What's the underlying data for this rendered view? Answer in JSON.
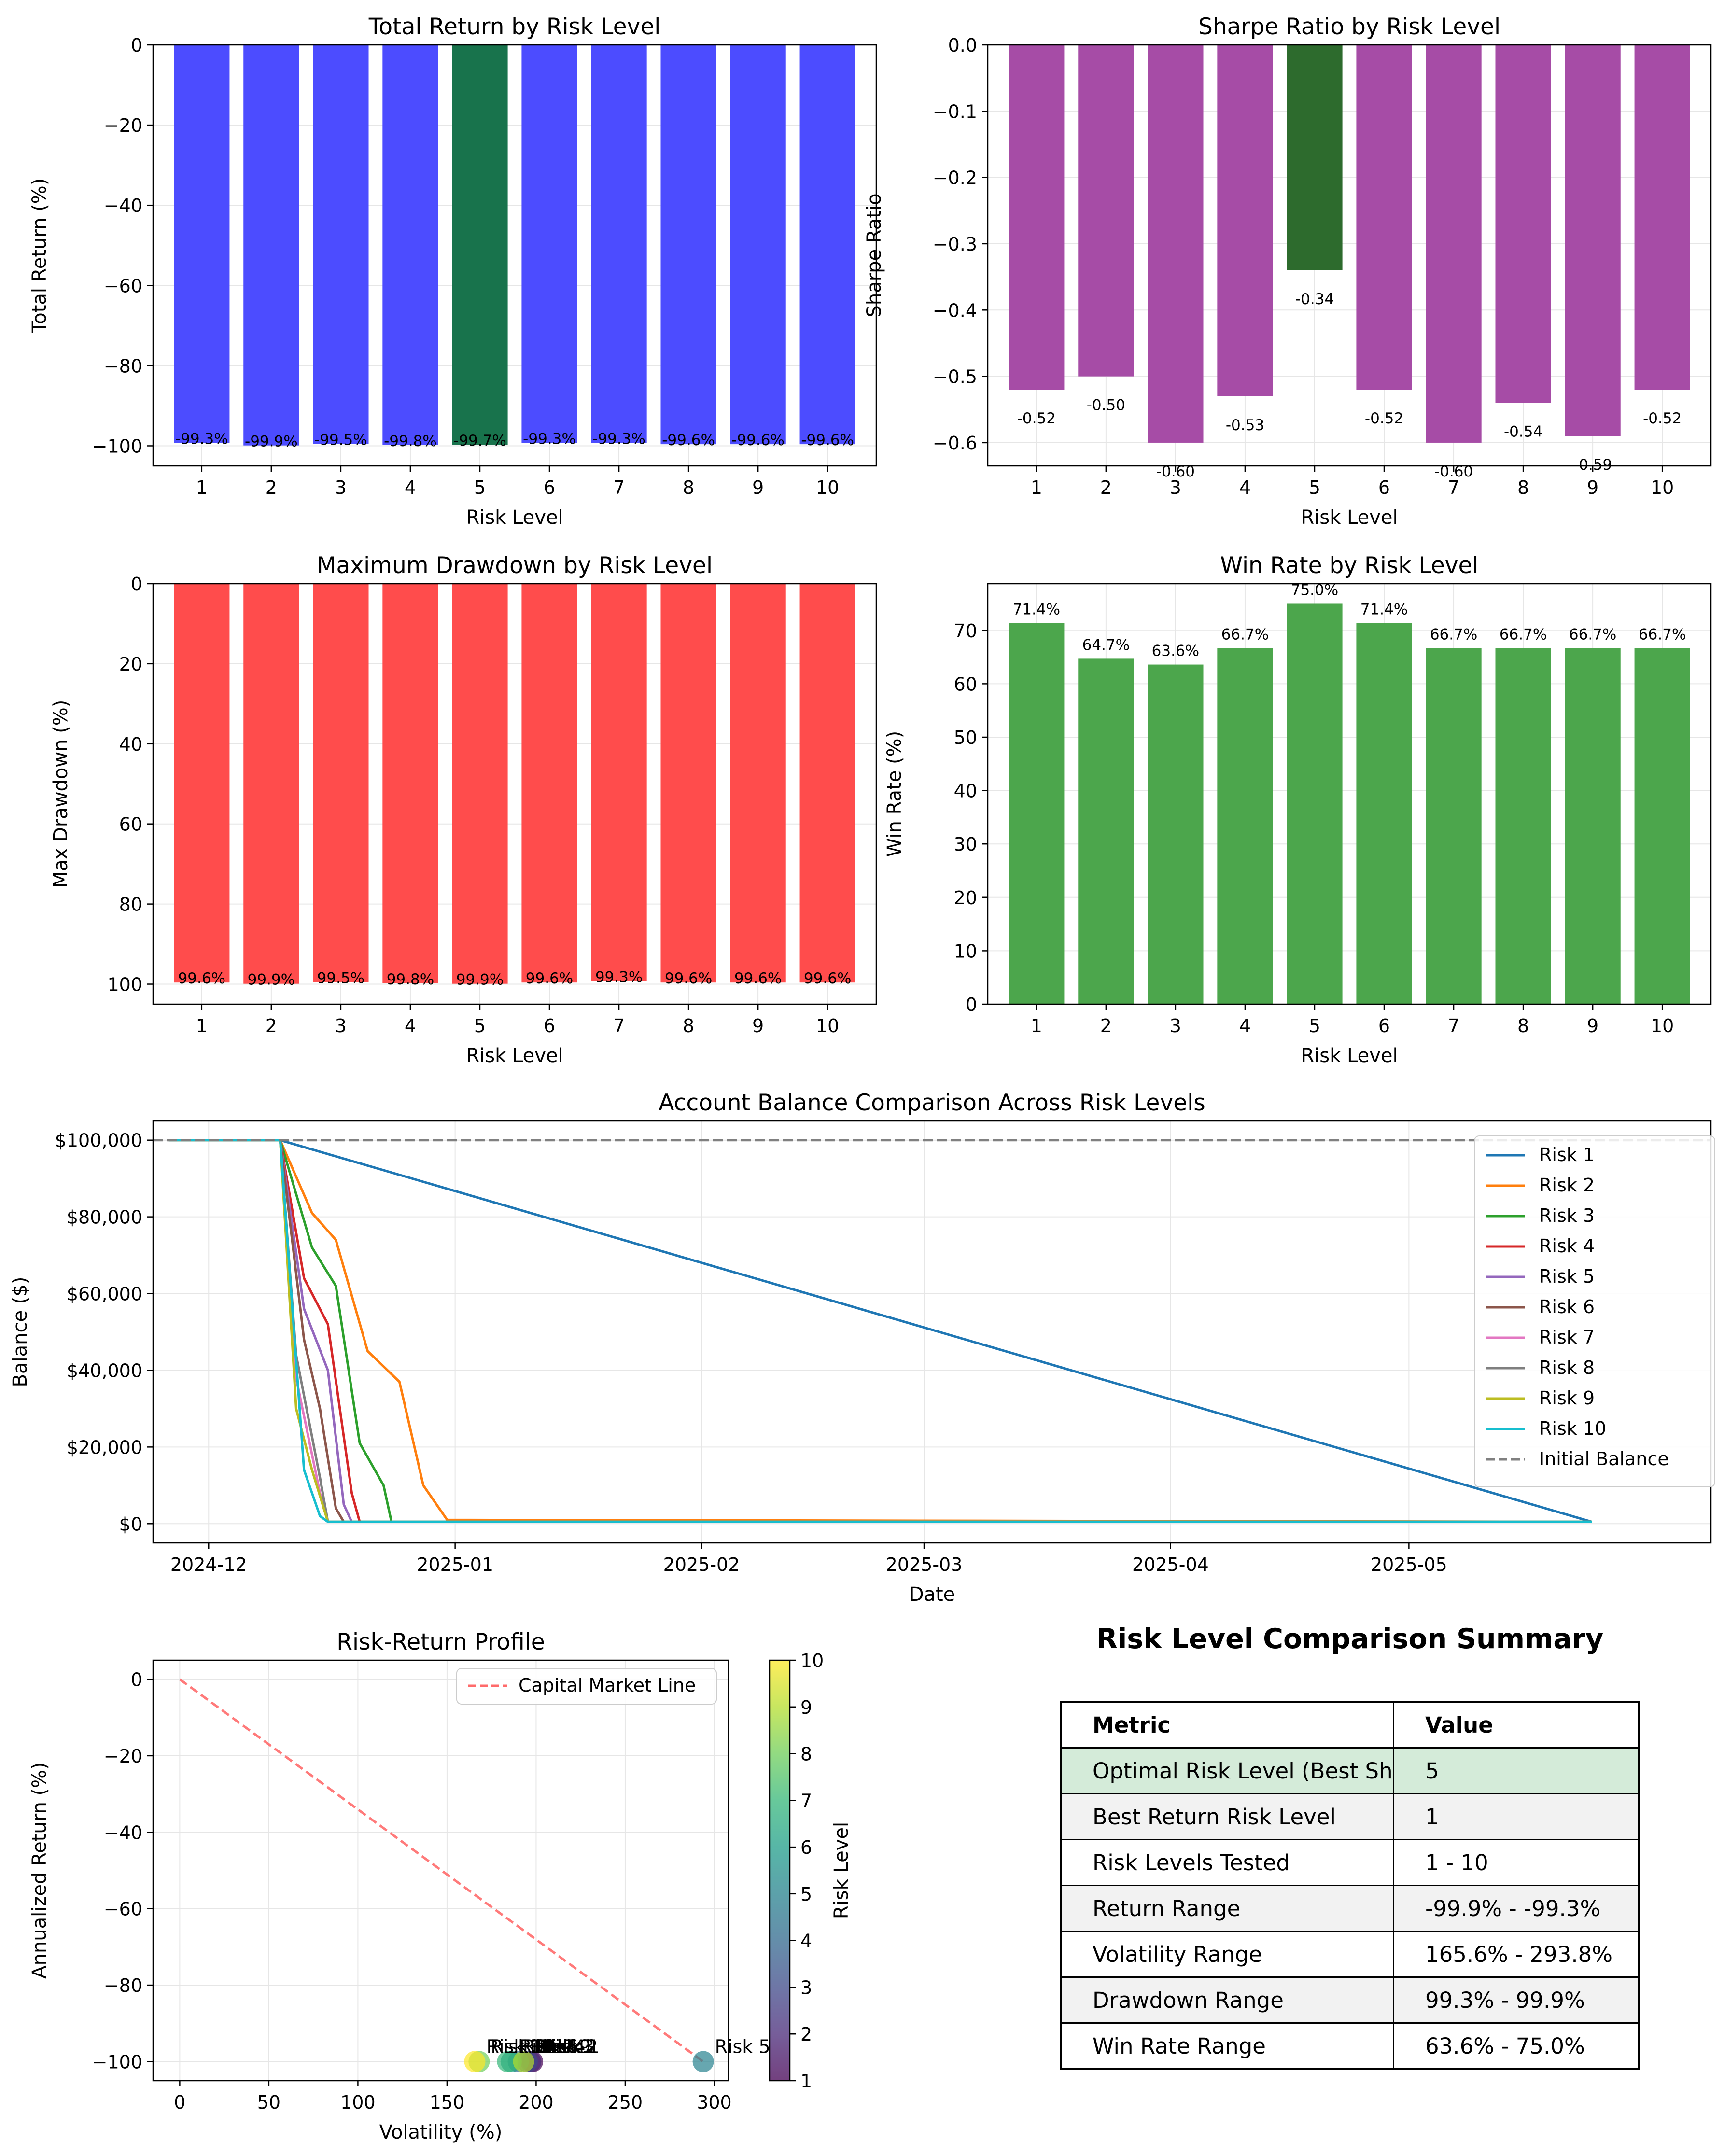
{
  "chart_data": [
    {
      "id": "total_return",
      "type": "bar",
      "title": "Total Return by Risk Level",
      "xlabel": "Risk Level",
      "ylabel": "Total Return (%)",
      "categories": [
        "1",
        "2",
        "3",
        "4",
        "5",
        "6",
        "7",
        "8",
        "9",
        "10"
      ],
      "values": [
        -99.3,
        -99.9,
        -99.5,
        -99.8,
        -99.7,
        -99.3,
        -99.3,
        -99.6,
        -99.6,
        -99.6
      ],
      "labels": [
        "-99.3%",
        "-99.9%",
        "-99.5%",
        "-99.8%",
        "-99.7%",
        "-99.3%",
        "-99.3%",
        "-99.6%",
        "-99.6%",
        "-99.6%"
      ],
      "ylim": [
        -105,
        0
      ],
      "yticks": [
        0,
        -20,
        -40,
        -60,
        -80,
        -100
      ],
      "ytick_labels": [
        "0",
        "−20",
        "−40",
        "−60",
        "−80",
        "−100"
      ],
      "highlight_index": 4,
      "colors": {
        "bar": "#4c4cff",
        "highlight": "#18734c"
      },
      "grid": true
    },
    {
      "id": "sharpe",
      "type": "bar",
      "title": "Sharpe Ratio by Risk Level",
      "xlabel": "Risk Level",
      "ylabel": "Sharpe Ratio",
      "categories": [
        "1",
        "2",
        "3",
        "4",
        "5",
        "6",
        "7",
        "8",
        "9",
        "10"
      ],
      "values": [
        -0.52,
        -0.5,
        -0.6,
        -0.53,
        -0.34,
        -0.52,
        -0.6,
        -0.54,
        -0.59,
        -0.52
      ],
      "labels": [
        "-0.52",
        "-0.50",
        "-0.60",
        "-0.53",
        "-0.34",
        "-0.52",
        "-0.60",
        "-0.54",
        "-0.59",
        "-0.52"
      ],
      "ylim": [
        -0.635,
        0
      ],
      "yticks": [
        0,
        -0.1,
        -0.2,
        -0.3,
        -0.4,
        -0.5,
        -0.6
      ],
      "ytick_labels": [
        "0.0",
        "−0.1",
        "−0.2",
        "−0.3",
        "−0.4",
        "−0.5",
        "−0.6"
      ],
      "highlight_index": 4,
      "colors": {
        "bar": "#a64ca6",
        "highlight": "#2d6b2d"
      },
      "grid": true
    },
    {
      "id": "drawdown",
      "type": "bar",
      "title": "Maximum Drawdown by Risk Level",
      "xlabel": "Risk Level",
      "ylabel": "Max Drawdown (%)",
      "categories": [
        "1",
        "2",
        "3",
        "4",
        "5",
        "6",
        "7",
        "8",
        "9",
        "10"
      ],
      "values": [
        99.6,
        99.9,
        99.5,
        99.8,
        99.9,
        99.6,
        99.3,
        99.6,
        99.6,
        99.6
      ],
      "labels": [
        "99.6%",
        "99.9%",
        "99.5%",
        "99.8%",
        "99.9%",
        "99.6%",
        "99.3%",
        "99.6%",
        "99.6%",
        "99.6%"
      ],
      "ylim": [
        105,
        0
      ],
      "inverted": true,
      "yticks": [
        0,
        20,
        40,
        60,
        80,
        100
      ],
      "ytick_labels": [
        "0",
        "20",
        "40",
        "60",
        "80",
        "100"
      ],
      "colors": {
        "bar": "#ff4c4c"
      },
      "grid": true
    },
    {
      "id": "winrate",
      "type": "bar",
      "title": "Win Rate by Risk Level",
      "xlabel": "Risk Level",
      "ylabel": "Win Rate (%)",
      "categories": [
        "1",
        "2",
        "3",
        "4",
        "5",
        "6",
        "7",
        "8",
        "9",
        "10"
      ],
      "values": [
        71.4,
        64.7,
        63.6,
        66.7,
        75.0,
        71.4,
        66.7,
        66.7,
        66.7,
        66.7
      ],
      "labels": [
        "71.4%",
        "64.7%",
        "63.6%",
        "66.7%",
        "75.0%",
        "71.4%",
        "66.7%",
        "66.7%",
        "66.7%",
        "66.7%"
      ],
      "ylim": [
        0,
        78.75
      ],
      "yticks": [
        0,
        10,
        20,
        30,
        40,
        50,
        60,
        70
      ],
      "ytick_labels": [
        "0",
        "10",
        "20",
        "30",
        "40",
        "50",
        "60",
        "70"
      ],
      "colors": {
        "bar": "#4ca64c"
      },
      "grid": true
    },
    {
      "id": "balance",
      "type": "line",
      "title": "Account Balance Comparison Across Risk Levels",
      "xlabel": "Date",
      "ylabel": "Balance ($)",
      "xlim": [
        "2024-11-24",
        "2025-06-08"
      ],
      "ylim": [
        -5000,
        105000
      ],
      "xticks": [
        "2024-12-01",
        "2025-01-01",
        "2025-02-01",
        "2025-03-01",
        "2025-04-01",
        "2025-05-01"
      ],
      "xtick_labels": [
        "2024-12",
        "2025-01",
        "2025-02",
        "2025-03",
        "2025-04",
        "2025-05"
      ],
      "yticks": [
        0,
        20000,
        40000,
        60000,
        80000,
        100000
      ],
      "ytick_labels": [
        "$0",
        "$20,000",
        "$40,000",
        "$60,000",
        "$80,000",
        "$100,000"
      ],
      "legend": "top-right",
      "grid": true,
      "series": [
        {
          "name": "Risk 1",
          "color": "#1f77b4",
          "x": [
            "2024-11-26",
            "2024-12-10",
            "2025-05-24"
          ],
          "y": [
            100000,
            100000,
            500
          ]
        },
        {
          "name": "Risk 2",
          "color": "#ff7f0e",
          "x": [
            "2024-11-26",
            "2024-12-10",
            "2024-12-14",
            "2024-12-17",
            "2024-12-21",
            "2024-12-25",
            "2024-12-28",
            "2024-12-31",
            "2025-05-24"
          ],
          "y": [
            100000,
            100000,
            81000,
            74000,
            45000,
            37000,
            10000,
            1000,
            500
          ]
        },
        {
          "name": "Risk 3",
          "color": "#2ca02c",
          "x": [
            "2024-11-26",
            "2024-12-10",
            "2024-12-14",
            "2024-12-17",
            "2024-12-20",
            "2024-12-23",
            "2024-12-24",
            "2025-05-24"
          ],
          "y": [
            100000,
            100000,
            72000,
            62000,
            21000,
            10000,
            500,
            500
          ]
        },
        {
          "name": "Risk 4",
          "color": "#d62728",
          "x": [
            "2024-11-26",
            "2024-12-10",
            "2024-12-13",
            "2024-12-16",
            "2024-12-19",
            "2024-12-20",
            "2025-05-24"
          ],
          "y": [
            100000,
            100000,
            64000,
            52000,
            8000,
            500,
            500
          ]
        },
        {
          "name": "Risk 5",
          "color": "#9467bd",
          "x": [
            "2024-11-26",
            "2024-12-10",
            "2024-12-13",
            "2024-12-16",
            "2024-12-18",
            "2024-12-19",
            "2025-05-24"
          ],
          "y": [
            100000,
            100000,
            56000,
            40000,
            5000,
            500,
            500
          ]
        },
        {
          "name": "Risk 6",
          "color": "#8c564b",
          "x": [
            "2024-11-26",
            "2024-12-10",
            "2024-12-13",
            "2024-12-15",
            "2024-12-17",
            "2024-12-18",
            "2025-05-24"
          ],
          "y": [
            100000,
            100000,
            48000,
            30000,
            4000,
            500,
            500
          ]
        },
        {
          "name": "Risk 7",
          "color": "#e377c2",
          "x": [
            "2024-11-26",
            "2024-12-10",
            "2024-12-12",
            "2024-12-15",
            "2024-12-16",
            "2025-05-24"
          ],
          "y": [
            100000,
            100000,
            38000,
            8000,
            500,
            500
          ]
        },
        {
          "name": "Risk 8",
          "color": "#7f7f7f",
          "x": [
            "2024-11-26",
            "2024-12-10",
            "2024-12-12",
            "2024-12-15",
            "2024-12-16",
            "2025-05-24"
          ],
          "y": [
            100000,
            100000,
            44000,
            12000,
            500,
            500
          ]
        },
        {
          "name": "Risk 9",
          "color": "#bcbd22",
          "x": [
            "2024-11-26",
            "2024-12-10",
            "2024-12-12",
            "2024-12-14",
            "2024-12-16",
            "2025-05-24"
          ],
          "y": [
            100000,
            100000,
            30000,
            14000,
            500,
            500
          ]
        },
        {
          "name": "Risk 10",
          "color": "#17becf",
          "x": [
            "2024-11-26",
            "2024-12-10",
            "2024-12-13",
            "2024-12-15",
            "2024-12-16",
            "2025-05-24"
          ],
          "y": [
            100000,
            100000,
            14000,
            2000,
            500,
            500
          ]
        }
      ],
      "reference_line": {
        "name": "Initial Balance",
        "y": 100000,
        "color": "#808080"
      }
    },
    {
      "id": "risk_return",
      "type": "scatter",
      "title": "Risk-Return Profile",
      "xlabel": "Volatility (%)",
      "ylabel": "Annualized Return (%)",
      "xlim": [
        -15,
        308
      ],
      "ylim": [
        -105,
        5
      ],
      "xticks": [
        0,
        50,
        100,
        150,
        200,
        250,
        300
      ],
      "xtick_labels": [
        "0",
        "50",
        "100",
        "150",
        "200",
        "250",
        "300"
      ],
      "yticks": [
        0,
        -20,
        -40,
        -60,
        -80,
        -100
      ],
      "ytick_labels": [
        "0",
        "−20",
        "−40",
        "−60",
        "−80",
        "−100"
      ],
      "grid": true,
      "legend": "top-right",
      "points": [
        {
          "risk": 1,
          "x": 198,
          "y": -100,
          "label": "Risk 1"
        },
        {
          "risk": 2,
          "x": 197,
          "y": -100,
          "label": "Risk 2"
        },
        {
          "risk": 3,
          "x": 195,
          "y": -100,
          "label": "Risk 3"
        },
        {
          "risk": 4,
          "x": 190,
          "y": -100,
          "label": "Risk 4"
        },
        {
          "risk": 5,
          "x": 293.8,
          "y": -100,
          "label": "Risk 5"
        },
        {
          "risk": 6,
          "x": 186,
          "y": -100,
          "label": "Risk 6"
        },
        {
          "risk": 7,
          "x": 184,
          "y": -100,
          "label": "Risk 7"
        },
        {
          "risk": 8,
          "x": 168,
          "y": -100,
          "label": "Risk 8"
        },
        {
          "risk": 9,
          "x": 193,
          "y": -100,
          "label": "Risk 9"
        },
        {
          "risk": 10,
          "x": 165.6,
          "y": -100,
          "label": "Risk 10"
        }
      ],
      "line": {
        "name": "Capital Market Line",
        "x": [
          0,
          293.8
        ],
        "y": [
          0,
          -100
        ],
        "color": "#ff6b6b"
      },
      "colorbar": {
        "label": "Risk Level",
        "min": 1,
        "max": 10,
        "ticks": [
          "1",
          "2",
          "3",
          "4",
          "5",
          "6",
          "7",
          "8",
          "9",
          "10"
        ]
      }
    }
  ],
  "summary": {
    "title": "Risk Level Comparison Summary",
    "header": {
      "metric": "Metric",
      "value": "Value"
    },
    "rows": [
      {
        "metric": "Optimal Risk Level (Best Sharpe)",
        "value": "5"
      },
      {
        "metric": "Best Return Risk Level",
        "value": "1"
      },
      {
        "metric": "Risk Levels Tested",
        "value": "1 - 10"
      },
      {
        "metric": "Return Range",
        "value": "-99.9% - -99.3%"
      },
      {
        "metric": "Volatility Range",
        "value": "165.6% - 293.8%"
      },
      {
        "metric": "Drawdown Range",
        "value": "99.3% - 99.9%"
      },
      {
        "metric": "Win Rate Range",
        "value": "63.6% - 75.0%"
      }
    ]
  }
}
